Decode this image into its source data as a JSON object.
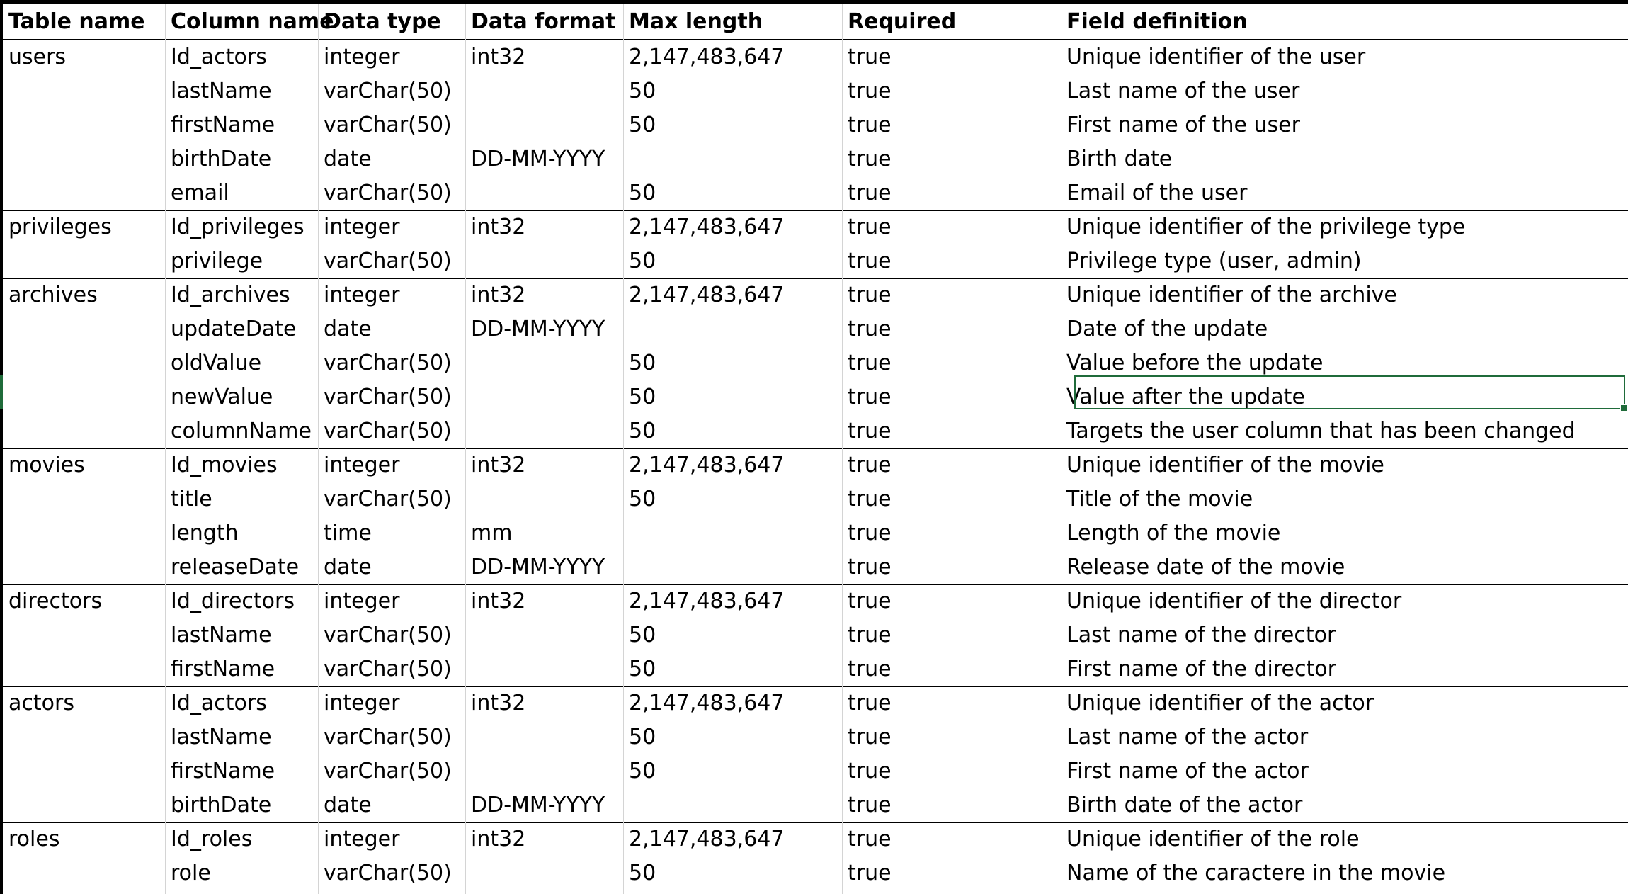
{
  "columns": [
    "Table name",
    "Column name",
    "Data type",
    "Data format",
    "Max length",
    "Required",
    "Field definition"
  ],
  "rows": [
    [
      "users",
      "Id_actors",
      "integer",
      "int32",
      "2,147,483,647",
      "true",
      "Unique identifier of the user"
    ],
    [
      "",
      "lastName",
      "varChar(50)",
      "",
      "50",
      "true",
      "Last name of the user"
    ],
    [
      "",
      "firstName",
      "varChar(50)",
      "",
      "50",
      "true",
      "First name of the user"
    ],
    [
      "",
      "birthDate",
      "date",
      "DD-MM-YYYY",
      "",
      "true",
      "Birth date"
    ],
    [
      "",
      "email",
      "varChar(50)",
      "",
      "50",
      "true",
      "Email of the user"
    ],
    [
      "privileges",
      "Id_privileges",
      "integer",
      "int32",
      "2,147,483,647",
      "true",
      "Unique identifier of the privilege type"
    ],
    [
      "",
      "privilege",
      "varChar(50)",
      "",
      "50",
      "true",
      "Privilege type (user, admin)"
    ],
    [
      "archives",
      "Id_archives",
      "integer",
      "int32",
      "2,147,483,647",
      "true",
      "Unique identifier of the archive"
    ],
    [
      "",
      "updateDate",
      "date",
      "DD-MM-YYYY",
      "",
      "true",
      "Date of the update"
    ],
    [
      "",
      "oldValue",
      "varChar(50)",
      "",
      "50",
      "true",
      "Value before the update"
    ],
    [
      "",
      "newValue",
      "varChar(50)",
      "",
      "50",
      "true",
      "Value after the update"
    ],
    [
      "",
      "columnName",
      "varChar(50)",
      "",
      "50",
      "true",
      "Targets the user column that has been changed"
    ],
    [
      "movies",
      "Id_movies",
      "integer",
      "int32",
      "2,147,483,647",
      "true",
      "Unique identifier of the movie"
    ],
    [
      "",
      "title",
      "varChar(50)",
      "",
      "50",
      "true",
      "Title of the movie"
    ],
    [
      "",
      "length",
      "time",
      "mm",
      "",
      "true",
      "Length of the movie"
    ],
    [
      "",
      "releaseDate",
      "date",
      "DD-MM-YYYY",
      "",
      "true",
      "Release date of the movie"
    ],
    [
      "directors",
      "Id_directors",
      "integer",
      "int32",
      "2,147,483,647",
      "true",
      "Unique identifier of the director"
    ],
    [
      "",
      "lastName",
      "varChar(50)",
      "",
      "50",
      "true",
      "Last name of the director"
    ],
    [
      "",
      "firstName",
      "varChar(50)",
      "",
      "50",
      "true",
      "First name of the director"
    ],
    [
      "actors",
      "Id_actors",
      "integer",
      "int32",
      "2,147,483,647",
      "true",
      "Unique identifier of the actor"
    ],
    [
      "",
      "lastName",
      "varChar(50)",
      "",
      "50",
      "true",
      "Last name of the actor"
    ],
    [
      "",
      "firstName",
      "varChar(50)",
      "",
      "50",
      "true",
      "First name of the actor"
    ],
    [
      "",
      "birthDate",
      "date",
      "DD-MM-YYYY",
      "",
      "true",
      "Birth date of the actor"
    ],
    [
      "roles",
      "Id_roles",
      "integer",
      "int32",
      "2,147,483,647",
      "true",
      "Unique identifier of the role"
    ],
    [
      "",
      "role",
      "varChar(50)",
      "",
      "50",
      "true",
      "Name of the caractere in the movie"
    ]
  ],
  "selection": {
    "row": 10,
    "column": 6
  },
  "colors": {
    "gridline": "#d4d4d4",
    "group_border": "#000000",
    "selection": "#1f6b3a"
  }
}
